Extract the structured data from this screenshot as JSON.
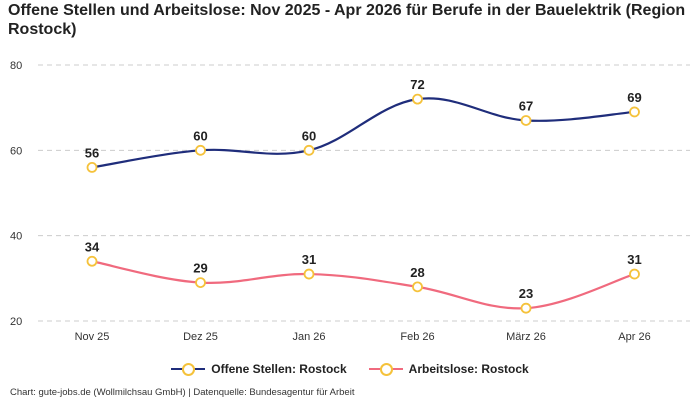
{
  "title": "Offene Stellen und Arbeitslose: Nov 2025 - Apr 2026 für Berufe in der Bauelektrik (Region Rostock)",
  "footer": "Chart: gute-jobs.de (Wollmilchsau GmbH) | Datenquelle: Bundesagentur für Arbeit",
  "colors": {
    "series_1": "#1f2d7b",
    "series_2": "#f06a7e",
    "marker": "#f5c23b",
    "grid": "#cccccc"
  },
  "chart_data": {
    "type": "line",
    "title": "Offene Stellen und Arbeitslose: Nov 2025 - Apr 2026 für Berufe in der Bauelektrik (Region Rostock)",
    "categories": [
      "Nov 25",
      "Dez 25",
      "Jan 26",
      "Feb 26",
      "März 26",
      "Apr 26"
    ],
    "series": [
      {
        "name": "Offene Stellen: Rostock",
        "values": [
          56,
          60,
          60,
          72,
          67,
          69
        ],
        "color": "#1f2d7b"
      },
      {
        "name": "Arbeitslose: Rostock",
        "values": [
          34,
          29,
          31,
          28,
          23,
          31
        ],
        "color": "#f06a7e"
      }
    ],
    "ylim": [
      20,
      80
    ],
    "yticks": [
      20,
      40,
      60,
      80
    ],
    "xlabel": "",
    "ylabel": "",
    "grid": true,
    "legend_position": "bottom-center",
    "data_labels": true
  }
}
